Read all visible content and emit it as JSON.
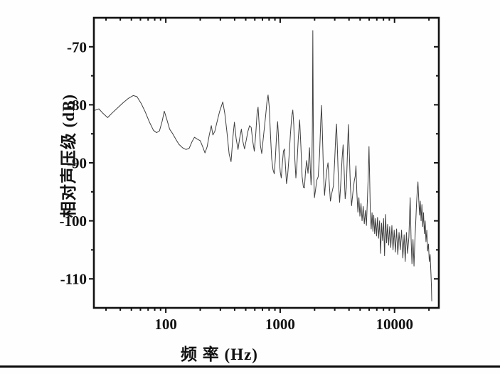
{
  "figure_title": "",
  "chart_data": {
    "type": "line",
    "title": "",
    "xlabel": "频 率 (Hz)",
    "ylabel": "相对声压级 (dB)",
    "x_scale": "log",
    "xlim": [
      23.5,
      24400
    ],
    "ylim": [
      -115,
      -65
    ],
    "grid": false,
    "legend": "none",
    "frame_color": "#111111",
    "line_color": "#3f3f3f",
    "x_major_ticks": [
      100,
      1000,
      10000
    ],
    "x_major_tick_labels": [
      "100",
      "1000",
      "10000"
    ],
    "x_minor_ticks": [
      30,
      40,
      50,
      60,
      70,
      80,
      90,
      200,
      300,
      400,
      500,
      600,
      700,
      800,
      900,
      2000,
      3000,
      4000,
      5000,
      6000,
      7000,
      8000,
      9000,
      20000
    ],
    "y_major_ticks": [
      -70,
      -80,
      -90,
      -100,
      -110
    ],
    "y_major_tick_labels": [
      "-70",
      "-80",
      "-90",
      "-100",
      "-110"
    ],
    "y_minor_ticks": [
      -75,
      -85,
      -95,
      -105
    ],
    "series": [
      {
        "name": "relative-sound-pressure-spectrum",
        "points": [
          [
            23.6,
            -81.0
          ],
          [
            26,
            -80.7
          ],
          [
            28,
            -81.4
          ],
          [
            31,
            -82.2
          ],
          [
            34,
            -81.4
          ],
          [
            38,
            -80.5
          ],
          [
            42,
            -79.7
          ],
          [
            47,
            -78.9
          ],
          [
            52,
            -78.4
          ],
          [
            56,
            -78.6
          ],
          [
            61,
            -79.8
          ],
          [
            66,
            -81.2
          ],
          [
            72,
            -83.0
          ],
          [
            78,
            -84.4
          ],
          [
            83,
            -84.8
          ],
          [
            88,
            -84.5
          ],
          [
            93,
            -82.8
          ],
          [
            97,
            -81.1
          ],
          [
            102,
            -82.5
          ],
          [
            108,
            -84.2
          ],
          [
            115,
            -85.0
          ],
          [
            122,
            -85.9
          ],
          [
            130,
            -86.8
          ],
          [
            140,
            -87.4
          ],
          [
            150,
            -87.7
          ],
          [
            160,
            -87.5
          ],
          [
            170,
            -86.3
          ],
          [
            178,
            -85.6
          ],
          [
            188,
            -85.9
          ],
          [
            200,
            -86.2
          ],
          [
            210,
            -87.2
          ],
          [
            220,
            -88.3
          ],
          [
            230,
            -87.2
          ],
          [
            240,
            -85.2
          ],
          [
            250,
            -83.6
          ],
          [
            258,
            -85.2
          ],
          [
            268,
            -84.6
          ],
          [
            280,
            -83.0
          ],
          [
            295,
            -81.2
          ],
          [
            315,
            -79.5
          ],
          [
            328,
            -81.5
          ],
          [
            342,
            -84.6
          ],
          [
            358,
            -88.5
          ],
          [
            372,
            -89.8
          ],
          [
            386,
            -85.6
          ],
          [
            398,
            -83.0
          ],
          [
            412,
            -85.8
          ],
          [
            428,
            -87.7
          ],
          [
            442,
            -85.8
          ],
          [
            458,
            -84.2
          ],
          [
            472,
            -86.3
          ],
          [
            488,
            -87.6
          ],
          [
            505,
            -86.1
          ],
          [
            522,
            -84.6
          ],
          [
            540,
            -83.6
          ],
          [
            558,
            -83.9
          ],
          [
            576,
            -86.3
          ],
          [
            594,
            -88.0
          ],
          [
            612,
            -85.0
          ],
          [
            628,
            -81.5
          ],
          [
            641,
            -80.4
          ],
          [
            656,
            -83.6
          ],
          [
            672,
            -87.0
          ],
          [
            690,
            -88.4
          ],
          [
            708,
            -86.2
          ],
          [
            728,
            -83.9
          ],
          [
            748,
            -81.7
          ],
          [
            766,
            -79.5
          ],
          [
            784,
            -78.3
          ],
          [
            802,
            -80.3
          ],
          [
            822,
            -85.0
          ],
          [
            843,
            -89.3
          ],
          [
            866,
            -91.2
          ],
          [
            888,
            -91.9
          ],
          [
            908,
            -89.2
          ],
          [
            929,
            -85.4
          ],
          [
            950,
            -82.9
          ],
          [
            966,
            -85.3
          ],
          [
            984,
            -89.6
          ],
          [
            1002,
            -91.6
          ],
          [
            1022,
            -92.6
          ],
          [
            1044,
            -90.2
          ],
          [
            1068,
            -88.0
          ],
          [
            1090,
            -87.6
          ],
          [
            1112,
            -90.5
          ],
          [
            1136,
            -93.6
          ],
          [
            1162,
            -92.2
          ],
          [
            1192,
            -89.3
          ],
          [
            1228,
            -85.2
          ],
          [
            1262,
            -82.0
          ],
          [
            1290,
            -80.9
          ],
          [
            1316,
            -83.5
          ],
          [
            1344,
            -89.4
          ],
          [
            1372,
            -92.6
          ],
          [
            1404,
            -90.0
          ],
          [
            1442,
            -85.6
          ],
          [
            1480,
            -82.6
          ],
          [
            1518,
            -87.2
          ],
          [
            1556,
            -92.4
          ],
          [
            1596,
            -94.2
          ],
          [
            1630,
            -94.3
          ],
          [
            1666,
            -91.5
          ],
          [
            1704,
            -89.6
          ],
          [
            1752,
            -91.8
          ],
          [
            1805,
            -87.4
          ],
          [
            1832,
            -90.8
          ],
          [
            1862,
            -93.8
          ],
          [
            1892,
            -91.0
          ],
          [
            1912,
            -84.0
          ],
          [
            1930,
            -67.2
          ],
          [
            1948,
            -83.0
          ],
          [
            1968,
            -92.5
          ],
          [
            1994,
            -96.0
          ],
          [
            2040,
            -94.6
          ],
          [
            2090,
            -93.0
          ],
          [
            2150,
            -92.4
          ],
          [
            2210,
            -88.6
          ],
          [
            2262,
            -83.0
          ],
          [
            2300,
            -80.1
          ],
          [
            2338,
            -84.5
          ],
          [
            2390,
            -91.6
          ],
          [
            2444,
            -95.6
          ],
          [
            2500,
            -93.2
          ],
          [
            2560,
            -91.2
          ],
          [
            2620,
            -90.0
          ],
          [
            2684,
            -93.4
          ],
          [
            2750,
            -96.6
          ],
          [
            2830,
            -95.2
          ],
          [
            2920,
            -94.0
          ],
          [
            3000,
            -89.4
          ],
          [
            3062,
            -85.2
          ],
          [
            3110,
            -83.3
          ],
          [
            3160,
            -87.2
          ],
          [
            3230,
            -93.0
          ],
          [
            3310,
            -96.8
          ],
          [
            3400,
            -93.0
          ],
          [
            3480,
            -89.2
          ],
          [
            3552,
            -86.9
          ],
          [
            3624,
            -91.2
          ],
          [
            3700,
            -96.2
          ],
          [
            3790,
            -94.2
          ],
          [
            3880,
            -88.0
          ],
          [
            3948,
            -83.4
          ],
          [
            4020,
            -88.0
          ],
          [
            4110,
            -94.0
          ],
          [
            4210,
            -97.4
          ],
          [
            4320,
            -95.2
          ],
          [
            4440,
            -93.2
          ],
          [
            4540,
            -92.2
          ],
          [
            4600,
            -90.5
          ],
          [
            4680,
            -95.0
          ],
          [
            4780,
            -98.5
          ],
          [
            4880,
            -96.0
          ],
          [
            4980,
            -99.2
          ],
          [
            5090,
            -97.0
          ],
          [
            5200,
            -100.0
          ],
          [
            5320,
            -97.5
          ],
          [
            5440,
            -100.5
          ],
          [
            5560,
            -98.2
          ],
          [
            5680,
            -100.8
          ],
          [
            5800,
            -96.0
          ],
          [
            5900,
            -91.8
          ],
          [
            5980,
            -87.2
          ],
          [
            6060,
            -92.5
          ],
          [
            6150,
            -99.0
          ],
          [
            6250,
            -101.4
          ],
          [
            6360,
            -98.6
          ],
          [
            6470,
            -101.8
          ],
          [
            6580,
            -99.0
          ],
          [
            6700,
            -102.2
          ],
          [
            6830,
            -99.6
          ],
          [
            6960,
            -102.6
          ],
          [
            7100,
            -99.4
          ],
          [
            7250,
            -103.0
          ],
          [
            7400,
            -100.0
          ],
          [
            7550,
            -105.6
          ],
          [
            7700,
            -100.4
          ],
          [
            7860,
            -103.4
          ],
          [
            8020,
            -99.6
          ],
          [
            8180,
            -106.0
          ],
          [
            8350,
            -98.9
          ],
          [
            8520,
            -103.8
          ],
          [
            8700,
            -100.6
          ],
          [
            8880,
            -104.2
          ],
          [
            9070,
            -101.0
          ],
          [
            9270,
            -104.6
          ],
          [
            9480,
            -100.8
          ],
          [
            9700,
            -105.0
          ],
          [
            9930,
            -101.6
          ],
          [
            10170,
            -105.4
          ],
          [
            10420,
            -101.4
          ],
          [
            10680,
            -105.8
          ],
          [
            10950,
            -102.0
          ],
          [
            11230,
            -105.0
          ],
          [
            11520,
            -101.6
          ],
          [
            11820,
            -106.4
          ],
          [
            12130,
            -102.4
          ],
          [
            12400,
            -107.0
          ],
          [
            12700,
            -102.0
          ],
          [
            13000,
            -105.6
          ],
          [
            13350,
            -102.8
          ],
          [
            13700,
            -96.0
          ],
          [
            13950,
            -103.0
          ],
          [
            14200,
            -107.4
          ],
          [
            14500,
            -103.2
          ],
          [
            14800,
            -107.8
          ],
          [
            15050,
            -103.6
          ],
          [
            15300,
            -100.6
          ],
          [
            15560,
            -97.2
          ],
          [
            15800,
            -94.8
          ],
          [
            16030,
            -93.3
          ],
          [
            16280,
            -96.2
          ],
          [
            16540,
            -99.0
          ],
          [
            16800,
            -96.6
          ],
          [
            17070,
            -100.0
          ],
          [
            17350,
            -97.2
          ],
          [
            17640,
            -101.0
          ],
          [
            17930,
            -98.6
          ],
          [
            18230,
            -102.2
          ],
          [
            18530,
            -100.0
          ],
          [
            18840,
            -103.6
          ],
          [
            19150,
            -101.6
          ],
          [
            19470,
            -105.2
          ],
          [
            19800,
            -104.0
          ],
          [
            20130,
            -107.0
          ],
          [
            20470,
            -105.8
          ],
          [
            20810,
            -109.0
          ],
          [
            21000,
            -111.0
          ],
          [
            21160,
            -113.8
          ]
        ]
      }
    ]
  },
  "page": {
    "bottom_rule_color": "#0a0a0a"
  }
}
